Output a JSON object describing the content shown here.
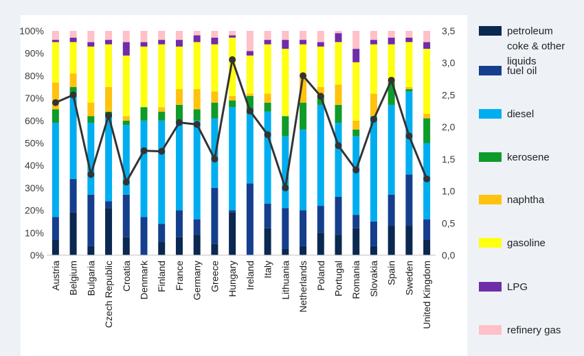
{
  "chart_data": {
    "type": "bar",
    "stacked": true,
    "categories": [
      "Austria",
      "Belgium",
      "Bulgaria",
      "Czech Republic",
      "Croatia",
      "Denmark",
      "Finland",
      "France",
      "Germany",
      "Greece",
      "Hungary",
      "Ireland",
      "Italy",
      "Lithuania",
      "Netherlands",
      "Poland",
      "Portugal",
      "Romania",
      "Slovakia",
      "Spain",
      "Sweden",
      "United Kingdom"
    ],
    "y_left": {
      "ylim": [
        0,
        100
      ],
      "ticks": [
        "0%",
        "10%",
        "20%",
        "30%",
        "40%",
        "50%",
        "60%",
        "70%",
        "80%",
        "90%",
        "100%"
      ]
    },
    "y_right": {
      "ylim": [
        0,
        3.5
      ],
      "ticks": [
        "0,0",
        "0,5",
        "1,0",
        "1,5",
        "2,0",
        "2,5",
        "3,0",
        "3,5"
      ]
    },
    "series": [
      {
        "name": "petroleum coke & other liquids",
        "legend_lines": [
          "petroleum",
          "coke & other",
          "liquids"
        ],
        "color": "#0a2850",
        "values": [
          7,
          19,
          4,
          21,
          8,
          0,
          6,
          8,
          9,
          5,
          19,
          0,
          12,
          3,
          4,
          10,
          9,
          12,
          4,
          13,
          13,
          7
        ]
      },
      {
        "name": "fuel oil",
        "legend_lines": [
          "fuel oil"
        ],
        "color": "#153f8c",
        "values": [
          10,
          15,
          23,
          3,
          19,
          17,
          8,
          12,
          7,
          25,
          1,
          32,
          11,
          18,
          16,
          12,
          17,
          6,
          11,
          14,
          23,
          9
        ]
      },
      {
        "name": "diesel",
        "legend_lines": [
          "diesel"
        ],
        "color": "#00aeef",
        "values": [
          42,
          38,
          32,
          38,
          31,
          43,
          46,
          40,
          44,
          31,
          46,
          31,
          41,
          32,
          36,
          45,
          33,
          35,
          47,
          40,
          37,
          34
        ]
      },
      {
        "name": "kerosene",
        "legend_lines": [
          "kerosene"
        ],
        "color": "#0f9b2a",
        "values": [
          6,
          3,
          3,
          2,
          2,
          6,
          4,
          7,
          5,
          7,
          3,
          8,
          4,
          9,
          12,
          4,
          8,
          3,
          0,
          10,
          1,
          11
        ]
      },
      {
        "name": "naphtha",
        "legend_lines": [
          "naphtha"
        ],
        "color": "#ffc20e",
        "values": [
          12,
          6,
          6,
          11,
          2,
          0,
          2,
          7,
          9,
          5,
          2,
          1,
          4,
          0,
          11,
          4,
          9,
          4,
          10,
          1,
          1,
          2
        ]
      },
      {
        "name": "gasoline",
        "legend_lines": [
          "gasoline"
        ],
        "color": "#ffff10",
        "values": [
          18,
          14,
          25,
          19,
          27,
          27,
          28,
          19,
          21,
          21,
          26,
          17,
          22,
          30,
          15,
          18,
          19,
          26,
          22,
          16,
          20,
          29
        ]
      },
      {
        "name": "LPG",
        "legend_lines": [
          "LPG"
        ],
        "color": "#6f2da8",
        "values": [
          1,
          2,
          2,
          2,
          6,
          2,
          2,
          3,
          3,
          3,
          1,
          2,
          2,
          4,
          2,
          2,
          4,
          6,
          2,
          3,
          2,
          3
        ]
      },
      {
        "name": "refinery gas",
        "legend_lines": [
          "refinery gas"
        ],
        "color": "#ffc0c8",
        "values": [
          4,
          3,
          5,
          4,
          5,
          5,
          4,
          4,
          2,
          3,
          2,
          9,
          4,
          4,
          4,
          5,
          1,
          8,
          4,
          3,
          3,
          5
        ]
      }
    ],
    "line_series": {
      "axis": "right",
      "color": "#333333",
      "values": [
        2.38,
        2.5,
        1.26,
        2.18,
        1.14,
        1.63,
        1.62,
        2.07,
        2.04,
        1.5,
        3.05,
        2.25,
        1.88,
        1.05,
        2.8,
        2.48,
        1.71,
        1.33,
        2.12,
        2.73,
        1.86,
        1.19
      ]
    },
    "legend_placement": "right",
    "grid": false
  }
}
